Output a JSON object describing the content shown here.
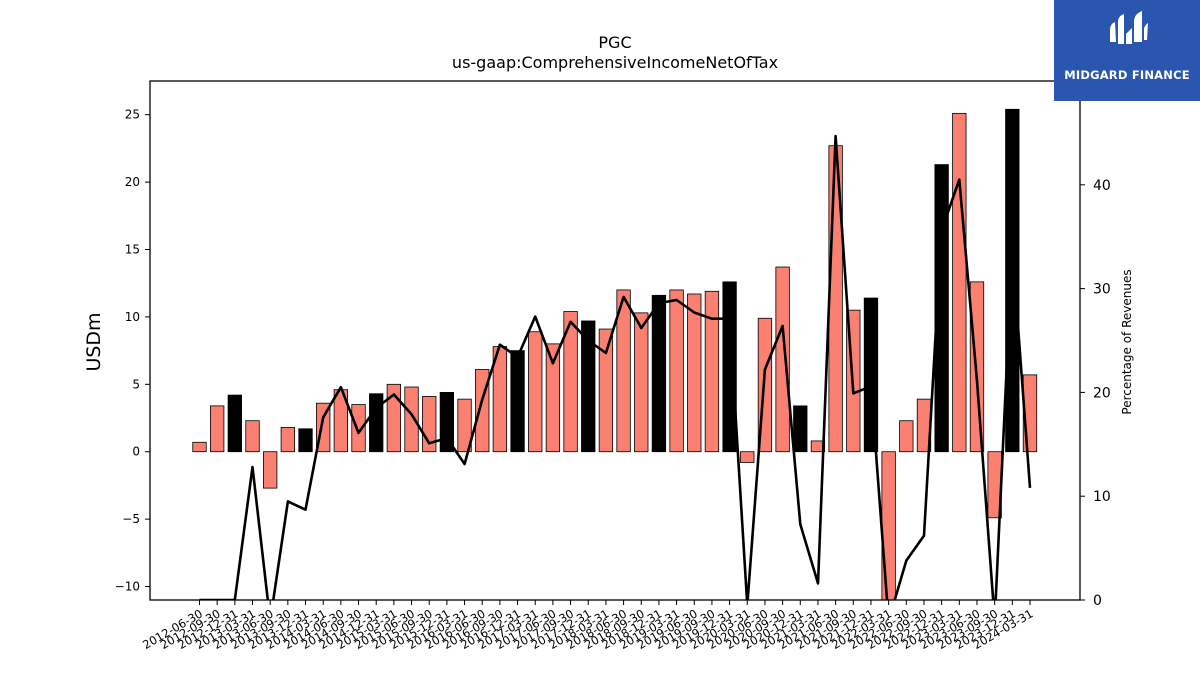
{
  "chart_data": {
    "type": "bar",
    "title": "PGC",
    "subtitle": "us-gaap:ComprehensiveIncomeNetOfTax",
    "ylabel": "USDm",
    "y2label": "Percentage of Revenues",
    "ylim": [
      -11,
      27.5
    ],
    "y2lim": [
      0,
      50
    ],
    "yticks": [
      -10,
      -5,
      0,
      5,
      10,
      15,
      20,
      25
    ],
    "y2ticks": [
      0,
      10,
      20,
      30,
      40
    ],
    "grid": false,
    "categories": [
      "2012-06-30",
      "2012-09-30",
      "2012-12-31",
      "2013-03-31",
      "2013-06-30",
      "2013-09-30",
      "2013-12-31",
      "2014-03-31",
      "2014-06-30",
      "2014-09-30",
      "2014-12-31",
      "2015-03-31",
      "2015-06-30",
      "2015-09-30",
      "2015-12-31",
      "2016-03-31",
      "2016-06-30",
      "2016-09-30",
      "2016-12-31",
      "2017-03-31",
      "2017-06-30",
      "2017-09-30",
      "2017-12-31",
      "2018-03-31",
      "2018-06-30",
      "2018-09-30",
      "2018-12-31",
      "2019-03-31",
      "2019-06-30",
      "2019-09-30",
      "2019-12-31",
      "2020-03-31",
      "2020-06-30",
      "2020-09-30",
      "2020-12-31",
      "2021-03-31",
      "2021-06-30",
      "2021-09-30",
      "2021-12-31",
      "2022-03-31",
      "2022-06-30",
      "2022-09-30",
      "2022-12-31",
      "2023-03-31",
      "2023-06-30",
      "2023-09-30",
      "2023-12-31",
      "2024-03-31"
    ],
    "series": [
      {
        "name": "ComprehensiveIncomeNetOfTax",
        "axis": "left",
        "values": [
          0.7,
          3.4,
          4.2,
          2.3,
          -2.7,
          1.8,
          1.7,
          3.6,
          4.6,
          3.5,
          4.3,
          5.0,
          4.8,
          4.1,
          4.4,
          3.9,
          6.1,
          7.8,
          7.5,
          8.9,
          8.0,
          10.4,
          9.7,
          9.1,
          12.0,
          10.3,
          11.6,
          12.0,
          11.7,
          11.9,
          12.6,
          -0.8,
          9.9,
          13.7,
          3.4,
          0.8,
          22.7,
          10.5,
          11.4,
          -11.0,
          2.3,
          3.9,
          21.3,
          25.1,
          12.6,
          -4.9,
          25.4,
          5.7
        ],
        "colors": {
          "quarter": "#fa8072",
          "year_end": "#000000"
        }
      },
      {
        "name": "Percentage of Revenues",
        "axis": "right",
        "type": "line",
        "color": "#000000",
        "values": [
          0,
          0,
          0,
          12.8,
          -2,
          9.5,
          8.7,
          17.6,
          20.5,
          16.1,
          18.5,
          19.8,
          17.9,
          15.1,
          15.6,
          13.1,
          19.3,
          24.6,
          23.4,
          27.3,
          22.8,
          26.8,
          25.0,
          23.8,
          29.2,
          26.2,
          28.6,
          28.9,
          27.7,
          27.1,
          27.1,
          -0.5,
          22.2,
          26.4,
          7.3,
          1.6,
          44.7,
          19.9,
          20.6,
          -2,
          3.8,
          6.2,
          35.6,
          40.5,
          21.1,
          -2,
          33.8,
          10.8
        ]
      }
    ]
  },
  "logo": {
    "text": "MIDGARD FINANCE",
    "icon": "midgard-logo-icon",
    "background": "#2a56b0"
  }
}
